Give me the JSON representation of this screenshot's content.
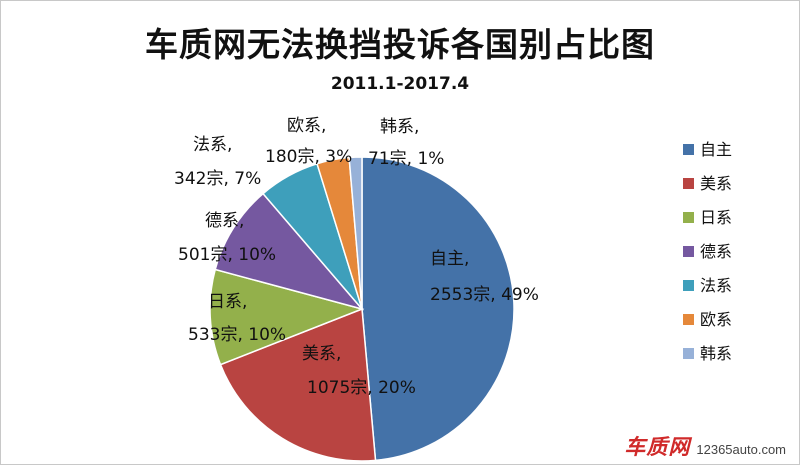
{
  "chart_data": {
    "type": "pie",
    "title": "车质网无法换挡投诉各国别占比图",
    "subtitle": "2011.1-2017.4",
    "unit": "宗",
    "legend_position": "right",
    "slices": [
      {
        "name": "自主",
        "value": 2553,
        "percent": "49%",
        "color": "#4472a8",
        "label_lines": [
          "自主,",
          "2553宗, 49%"
        ]
      },
      {
        "name": "美系",
        "value": 1075,
        "percent": "20%",
        "color": "#b94441",
        "label_lines": [
          "美系,",
          "1075宗, 20%"
        ]
      },
      {
        "name": "日系",
        "value": 533,
        "percent": "10%",
        "color": "#93b04b",
        "label_lines": [
          "日系,",
          "533宗, 10%"
        ]
      },
      {
        "name": "德系",
        "value": 501,
        "percent": "10%",
        "color": "#7558a0",
        "label_lines": [
          "德系,",
          "501宗, 10%"
        ]
      },
      {
        "name": "法系",
        "value": 342,
        "percent": "7%",
        "color": "#3e9fbb",
        "label_lines": [
          "法系,",
          "342宗, 7%"
        ]
      },
      {
        "name": "欧系",
        "value": 180,
        "percent": "3%",
        "color": "#e5883a",
        "label_lines": [
          "欧系,",
          "180宗, 3%"
        ]
      },
      {
        "name": "韩系",
        "value": 71,
        "percent": "1%",
        "color": "#97b1d8",
        "label_lines": [
          "韩系,",
          "71宗, 1%"
        ]
      }
    ]
  },
  "watermark": {
    "logo": "车质网",
    "site": "12365auto.com"
  }
}
